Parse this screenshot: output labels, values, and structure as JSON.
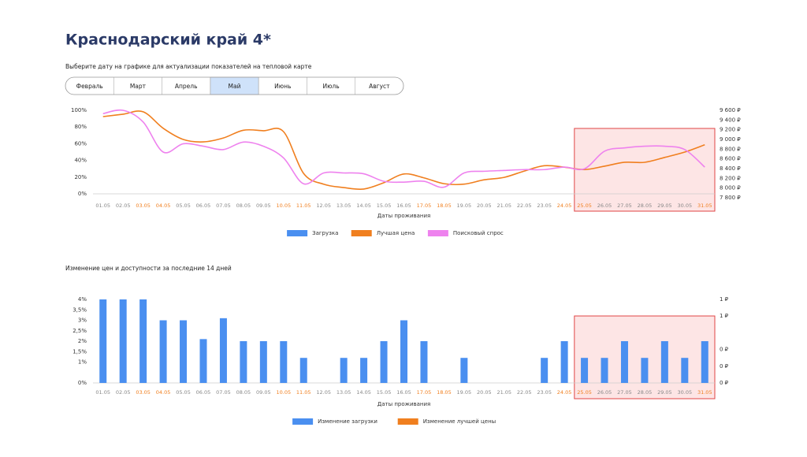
{
  "header": {
    "title": "Краснодарский край 4*",
    "subtitle": "Выберите дату на графике для актуализации показателей на тепловой карте"
  },
  "tabs": {
    "items": [
      "Февраль",
      "Март",
      "Апрель",
      "Май",
      "Июнь",
      "Июль",
      "Август"
    ],
    "selected": 3
  },
  "chart_data": [
    {
      "type": "line",
      "x_label": "Даты проживания",
      "categories": [
        "01.05",
        "02.05",
        "03.05",
        "04.05",
        "05.05",
        "06.05",
        "07.05",
        "08.05",
        "09.05",
        "10.05",
        "11.05",
        "12.05",
        "13.05",
        "14.05",
        "15.05",
        "16.05",
        "17.05",
        "18.05",
        "19.05",
        "20.05",
        "21.05",
        "22.05",
        "23.05",
        "24.05",
        "25.05",
        "26.05",
        "27.05",
        "28.05",
        "29.05",
        "30.05",
        "31.05"
      ],
      "category_colors": [
        "#888",
        "#888",
        "#f07f1f",
        "#f07f1f",
        "#888",
        "#888",
        "#888",
        "#888",
        "#888",
        "#f07f1f",
        "#f07f1f",
        "#888",
        "#888",
        "#888",
        "#888",
        "#888",
        "#f07f1f",
        "#f07f1f",
        "#888",
        "#888",
        "#888",
        "#888",
        "#888",
        "#f07f1f",
        "#f07f1f",
        "#888",
        "#888",
        "#888",
        "#888",
        "#888",
        "#f07f1f"
      ],
      "highlight": [
        24,
        30
      ],
      "series": [
        {
          "name": "Загрузка",
          "color": "#4a8ff0",
          "values": [
            null,
            null,
            null,
            null,
            null,
            null,
            null,
            null,
            null,
            null,
            null,
            null,
            null,
            null,
            null,
            null,
            null,
            null,
            null,
            null,
            null,
            null,
            null,
            null,
            null,
            null,
            null,
            null,
            null,
            null,
            null
          ]
        },
        {
          "name": "Лучшая цена",
          "color": "#f07f1f",
          "axis": "y2",
          "values": [
            9470,
            9520,
            9570,
            9230,
            9000,
            8950,
            9030,
            9190,
            9180,
            9160,
            8300,
            8080,
            8010,
            7980,
            8110,
            8290,
            8210,
            8090,
            8080,
            8170,
            8220,
            8350,
            8460,
            8430,
            8380,
            8450,
            8530,
            8530,
            8630,
            8740,
            8890
          ]
        },
        {
          "name": "Поисковый спрос",
          "color": "#ee82ee",
          "values": [
            96,
            100,
            86,
            50,
            60,
            57,
            53,
            62,
            57,
            43,
            12,
            25,
            25,
            24,
            15,
            14,
            15,
            8,
            25,
            27,
            28,
            29,
            29,
            32,
            30,
            51,
            55,
            57,
            57,
            53,
            32
          ]
        }
      ],
      "ylim": [
        0,
        100
      ],
      "yticks": [
        {
          "value": 0,
          "label": "0%"
        },
        {
          "value": 20,
          "label": "20%"
        },
        {
          "value": 40,
          "label": "40%"
        },
        {
          "value": 60,
          "label": "60%"
        },
        {
          "value": 80,
          "label": "80%"
        },
        {
          "value": 100,
          "label": "100%"
        }
      ],
      "y2lim": [
        7800,
        9600
      ],
      "y2ticks": [
        {
          "value": 7800,
          "label": "7 800 ₽"
        },
        {
          "value": 8000,
          "label": "8 000 ₽"
        },
        {
          "value": 8200,
          "label": "8 200 ₽"
        },
        {
          "value": 8400,
          "label": "8 400 ₽"
        },
        {
          "value": 8600,
          "label": "8 600 ₽"
        },
        {
          "value": 8800,
          "label": "8 800 ₽"
        },
        {
          "value": 9000,
          "label": "9 000 ₽"
        },
        {
          "value": 9200,
          "label": "9 200 ₽"
        },
        {
          "value": 9400,
          "label": "9 400 ₽"
        },
        {
          "value": 9600,
          "label": "9 600 ₽"
        }
      ]
    },
    {
      "type": "bar",
      "title": "Изменение цен и доступности за последние 14 дней",
      "x_label": "Даты проживания",
      "categories": [
        "01.05",
        "02.05",
        "03.05",
        "04.05",
        "05.05",
        "06.05",
        "07.05",
        "08.05",
        "09.05",
        "10.05",
        "11.05",
        "12.05",
        "13.05",
        "14.05",
        "15.05",
        "16.05",
        "17.05",
        "18.05",
        "19.05",
        "20.05",
        "21.05",
        "22.05",
        "23.05",
        "24.05",
        "25.05",
        "26.05",
        "27.05",
        "28.05",
        "29.05",
        "30.05",
        "31.05"
      ],
      "category_colors": [
        "#888",
        "#888",
        "#f07f1f",
        "#f07f1f",
        "#888",
        "#888",
        "#888",
        "#888",
        "#888",
        "#f07f1f",
        "#f07f1f",
        "#888",
        "#888",
        "#888",
        "#888",
        "#888",
        "#f07f1f",
        "#f07f1f",
        "#888",
        "#888",
        "#888",
        "#888",
        "#888",
        "#f07f1f",
        "#f07f1f",
        "#888",
        "#888",
        "#888",
        "#888",
        "#888",
        "#f07f1f"
      ],
      "highlight": [
        24,
        30
      ],
      "series": [
        {
          "name": "Изменение загрузки",
          "color": "#4a8ff0",
          "values": [
            4,
            4,
            4,
            3,
            3,
            2.1,
            3.1,
            2,
            2,
            2,
            1.2,
            0,
            1.2,
            1.2,
            2,
            3,
            2,
            0,
            1.2,
            0,
            0,
            0,
            1.2,
            2,
            1.2,
            1.2,
            2,
            1.2,
            2,
            1.2,
            2
          ]
        },
        {
          "name": "Изменение лучшей цены",
          "color": "#f07f1f",
          "axis": "y2",
          "values": [
            0,
            0,
            0,
            0,
            0,
            0,
            0,
            0,
            0,
            0,
            0,
            0,
            0,
            0,
            0,
            0,
            0,
            0,
            0,
            0,
            0,
            0,
            0,
            0,
            0,
            0,
            0,
            0,
            0,
            0,
            0
          ]
        }
      ],
      "ylim": [
        0,
        4
      ],
      "yticks": [
        {
          "value": 0,
          "label": "0%"
        },
        {
          "value": 1,
          "label": "1%"
        },
        {
          "value": 1.5,
          "label": "1,5%"
        },
        {
          "value": 2,
          "label": "2%"
        },
        {
          "value": 2.5,
          "label": "2,5%"
        },
        {
          "value": 3,
          "label": "3%"
        },
        {
          "value": 3.5,
          "label": "3,5%"
        },
        {
          "value": 4,
          "label": "4%"
        }
      ],
      "y2lim": [
        0,
        1
      ],
      "y2ticks": [
        {
          "value": 0,
          "label": "0 ₽"
        },
        {
          "value": 0.2,
          "label": "0 ₽"
        },
        {
          "value": 0.4,
          "label": "0 ₽"
        },
        {
          "value": 0.8,
          "label": "1 ₽"
        },
        {
          "value": 1,
          "label": "1 ₽"
        }
      ]
    }
  ]
}
